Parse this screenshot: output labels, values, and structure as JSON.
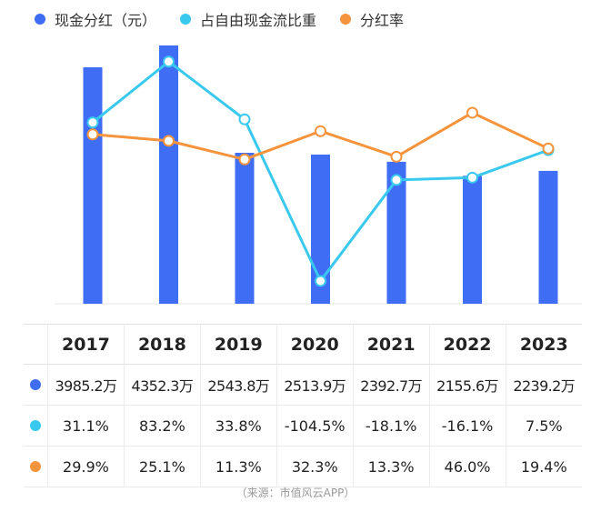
{
  "chart_data": {
    "type": "bar",
    "categories": [
      "2017",
      "2018",
      "2019",
      "2020",
      "2021",
      "2022",
      "2023"
    ],
    "series": [
      {
        "name": "现金分红（元）",
        "type": "bar",
        "color": "#3f6ef5",
        "labels": [
          "3985.2万",
          "4352.3万",
          "2543.8万",
          "2513.9万",
          "2392.7万",
          "2155.6万",
          "2239.2万"
        ],
        "values": [
          3985.2,
          4352.3,
          2543.8,
          2513.9,
          2392.7,
          2155.6,
          2239.2
        ]
      },
      {
        "name": "占自由现金流比重",
        "type": "line",
        "color": "#39c8ee",
        "labels": [
          "31.1%",
          "83.2%",
          "33.8%",
          "-104.5%",
          "-18.1%",
          "-16.1%",
          "7.5%"
        ],
        "values": [
          31.1,
          83.2,
          33.8,
          -104.5,
          -18.1,
          -16.1,
          7.5
        ]
      },
      {
        "name": "分红率",
        "type": "line",
        "color": "#f5943c",
        "labels": [
          "29.9%",
          "25.1%",
          "11.3%",
          "32.3%",
          "13.3%",
          "46.0%",
          "19.4%"
        ],
        "values": [
          29.9,
          25.1,
          11.3,
          32.3,
          13.3,
          46.0,
          19.4
        ]
      }
    ],
    "bar_unit": "万",
    "bar_ylim": [
      0,
      4352.3
    ],
    "cyan_ylim": [
      -124,
      97
    ],
    "orange_ylim": [
      -96,
      96
    ],
    "grid": false,
    "legend": "top-left"
  },
  "source": "（来源：市值风云APP）"
}
